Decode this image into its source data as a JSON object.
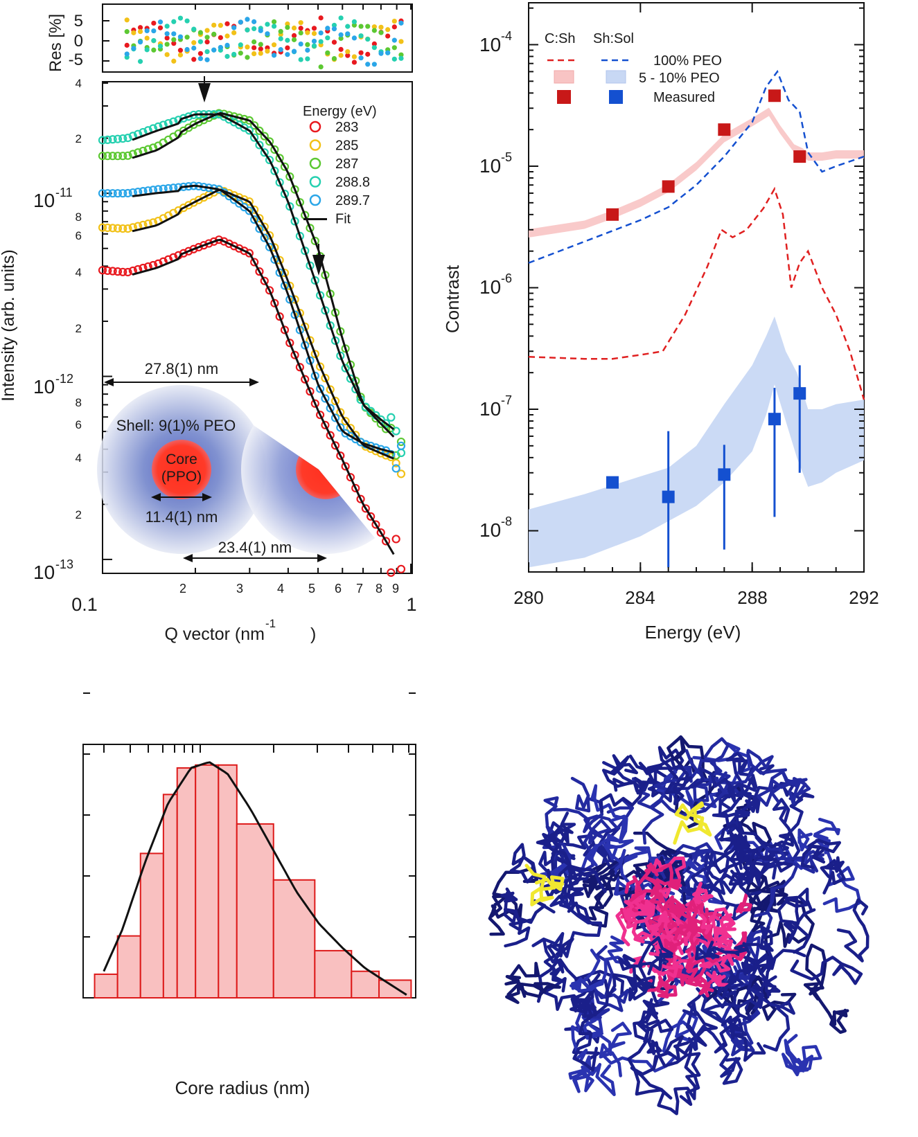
{
  "panels": {
    "saxs": {
      "residual_ylabel": "Res [%]",
      "residual_ticks": [
        "5",
        "0",
        "-5"
      ],
      "ylabel": "Intensity (arb. units)",
      "xlabel_main": "Q vector (nm",
      "xlabel_sup": "-1",
      "xlabel_end": ")",
      "x_ticks": {
        "major": [
          "0.1",
          "1"
        ],
        "minor": [
          "2",
          "3",
          "4",
          "5",
          "6",
          "7",
          "8",
          "9"
        ]
      },
      "y_ticks": {
        "decades": [
          {
            "base": "10",
            "exp": "-11"
          },
          {
            "base": "10",
            "exp": "-12"
          },
          {
            "base": "10",
            "exp": "-13"
          }
        ],
        "minor": [
          "4",
          "2",
          "8",
          "6",
          "4",
          "2",
          "8",
          "6",
          "4",
          "2"
        ]
      },
      "legend_title": "Energy (eV)",
      "legend_items": [
        {
          "label": "283",
          "color": "#e8191f"
        },
        {
          "label": "285",
          "color": "#f2c118"
        },
        {
          "label": "287",
          "color": "#5cc832"
        },
        {
          "label": "288.8",
          "color": "#25d0b0"
        },
        {
          "label": "289.7",
          "color": "#2aa6e8"
        },
        {
          "label": "Fit",
          "color": "#111111"
        }
      ],
      "annotations": {
        "outer_diameter": "27.8(1) nm",
        "shell": "Shell: 9(1)% PEO",
        "core_line1": "Core",
        "core_line2": "(PPO)",
        "core_diameter": "11.4(1) nm",
        "inner_diameter": "23.4(1) nm"
      }
    },
    "contrast": {
      "ylabel": "Contrast",
      "xlabel": "Energy (eV)",
      "x_ticks": [
        "280",
        "284",
        "288",
        "292"
      ],
      "y_ticks": [
        {
          "base": "10",
          "exp": "-4"
        },
        {
          "base": "10",
          "exp": "-5"
        },
        {
          "base": "10",
          "exp": "-6"
        },
        {
          "base": "10",
          "exp": "-7"
        },
        {
          "base": "10",
          "exp": "-8"
        }
      ],
      "legend_header_1": "C:Sh",
      "legend_header_2": "Sh:Sol",
      "legend_rows": [
        "100% PEO",
        "5 - 10% PEO",
        "Measured"
      ],
      "colors": {
        "red": "#e02020",
        "blue": "#1450d0",
        "pink_band": "#f8c4c4",
        "blue_band": "#c8d8f4"
      }
    },
    "histogram": {
      "xlabel": "Core radius (nm)",
      "bar_fill": "#f9c0c0",
      "bar_stroke": "#dd1a1a"
    }
  },
  "chart_data": [
    {
      "type": "scatter",
      "title": "",
      "xlabel": "Q vector (nm-1)",
      "ylabel": "Intensity (arb. units)",
      "xscale": "log",
      "yscale": "log",
      "xlim": [
        0.1,
        1.0
      ],
      "ylim": [
        9e-14,
        4e-11
      ],
      "legend": "top-right",
      "series": [
        {
          "name": "283",
          "color": "#e8191f",
          "x": [
            0.1,
            0.12,
            0.15,
            0.2,
            0.24,
            0.3,
            0.35,
            0.4,
            0.5,
            0.6,
            0.7,
            0.8,
            0.9
          ],
          "y": [
            3.8e-12,
            3.7e-12,
            4.1e-12,
            5e-12,
            5.6e-12,
            4.7e-12,
            2.9e-12,
            1.6e-12,
            6.5e-13,
            3.5e-13,
            2e-13,
            1.4e-13,
            1e-13
          ]
        },
        {
          "name": "285",
          "color": "#f2c118",
          "x": [
            0.1,
            0.12,
            0.15,
            0.2,
            0.24,
            0.3,
            0.35,
            0.4,
            0.5,
            0.6,
            0.7,
            0.8,
            0.9
          ],
          "y": [
            6.5e-12,
            6.4e-12,
            7e-12,
            9e-12,
            1.05e-11,
            9e-12,
            5.8e-12,
            3.3e-12,
            1.2e-12,
            6e-13,
            4.2e-13,
            3.8e-13,
            3.5e-13
          ]
        },
        {
          "name": "287",
          "color": "#5cc832",
          "x": [
            0.1,
            0.12,
            0.15,
            0.2,
            0.24,
            0.3,
            0.35,
            0.4,
            0.5,
            0.6,
            0.7,
            0.8,
            0.9
          ],
          "y": [
            1.6e-11,
            1.6e-11,
            1.8e-11,
            2.4e-11,
            2.75e-11,
            2.5e-11,
            1.9e-11,
            1.3e-11,
            5e-12,
            1.6e-12,
            7e-13,
            5.5e-13,
            4.5e-13
          ]
        },
        {
          "name": "288.8",
          "color": "#25d0b0",
          "x": [
            0.1,
            0.12,
            0.15,
            0.2,
            0.24,
            0.3,
            0.35,
            0.4,
            0.5,
            0.6,
            0.7,
            0.8,
            0.9
          ],
          "y": [
            1.95e-11,
            2e-11,
            2.3e-11,
            2.7e-11,
            2.7e-11,
            2.2e-11,
            1.5e-11,
            9e-12,
            3e-12,
            1.2e-12,
            7e-13,
            5.8e-13,
            5e-13
          ]
        },
        {
          "name": "289.7",
          "color": "#2aa6e8",
          "x": [
            0.1,
            0.12,
            0.15,
            0.2,
            0.24,
            0.3,
            0.35,
            0.4,
            0.5,
            0.6,
            0.7,
            0.8,
            0.9
          ],
          "y": [
            1e-11,
            1e-11,
            1.05e-11,
            1.1e-11,
            1.05e-11,
            8e-12,
            5e-12,
            2.8e-12,
            9e-13,
            5e-13,
            4.3e-13,
            4e-13,
            3.8e-13
          ]
        }
      ]
    },
    {
      "type": "line",
      "title": "",
      "xlabel": "Energy (eV)",
      "ylabel": "Contrast",
      "yscale": "log",
      "xlim": [
        280,
        292
      ],
      "ylim": [
        5e-09,
        0.0002
      ],
      "legend": "top-left",
      "series": [
        {
          "name": "C:Sh 100% PEO",
          "style": "dashed",
          "color": "#e02020",
          "x": [
            280,
            282,
            283,
            284,
            284.8,
            285.6,
            286.4,
            286.9,
            287.3,
            287.8,
            288.4,
            288.8,
            289.1,
            289.4,
            289.7,
            290,
            290.5,
            291,
            291.5,
            292
          ],
          "y": [
            2.7e-07,
            2.6e-07,
            2.6e-07,
            2.8e-07,
            3e-07,
            6e-07,
            1.5e-06,
            3e-06,
            2.6e-06,
            3e-06,
            4.5e-06,
            6.5e-06,
            4e-06,
            1e-06,
            1.6e-06,
            2e-06,
            1e-06,
            6e-07,
            3e-07,
            1.2e-07
          ]
        },
        {
          "name": "Sh:Sol 100% PEO",
          "style": "dashed",
          "color": "#1450d0",
          "x": [
            280,
            282,
            284,
            285,
            286,
            287,
            288,
            288.5,
            288.9,
            289.3,
            289.7,
            290,
            290.5,
            291,
            292
          ],
          "y": [
            1.6e-06,
            2.4e-06,
            3.6e-06,
            4.6e-06,
            7e-06,
            1.2e-05,
            2.3e-05,
            4.5e-05,
            6e-05,
            3.5e-05,
            2.8e-05,
            1.3e-05,
            9e-06,
            1e-05,
            1.2e-05
          ]
        },
        {
          "name": "C:Sh 5 - 10% PEO",
          "style": "band",
          "color": "#f8c4c4",
          "x": [
            280,
            282,
            283,
            284,
            285,
            286,
            287,
            288,
            288.6,
            289,
            289.5,
            289.8,
            290,
            290.5,
            291,
            292
          ],
          "y": [
            2.8e-06,
            3.3e-06,
            4e-06,
            5e-06,
            6.6e-06,
            1e-05,
            1.7e-05,
            2.3e-05,
            2.8e-05,
            2e-05,
            1.4e-05,
            1.3e-05,
            1.2e-05,
            1.2e-05,
            1.25e-05,
            1.25e-05
          ]
        },
        {
          "name": "Sh:Sol 5 - 10% PEO",
          "style": "band",
          "color": "#c8d8f4",
          "x": [
            280,
            282,
            284,
            285,
            286,
            287,
            288,
            288.5,
            288.8,
            289.2,
            289.6,
            290,
            290.5,
            291,
            292
          ],
          "y_low": [
            5e-09,
            6e-09,
            9e-09,
            1.2e-08,
            1.6e-08,
            2.5e-08,
            4.5e-08,
            9e-08,
            1.6e-07,
            8e-08,
            4e-08,
            2.3e-08,
            2.5e-08,
            3e-08,
            3.8e-08
          ],
          "y_high": [
            1.5e-08,
            2e-08,
            2.8e-08,
            3.3e-08,
            5e-08,
            1.1e-07,
            2.3e-07,
            4e-07,
            5.8e-07,
            3e-07,
            2e-07,
            1e-07,
            1e-07,
            1.1e-07,
            1.2e-07
          ]
        },
        {
          "name": "C:Sh Measured",
          "style": "markers",
          "color": "#c81818",
          "x": [
            283,
            285,
            287,
            288.8,
            289.7
          ],
          "y": [
            4e-06,
            6.8e-06,
            2e-05,
            3.8e-05,
            1.2e-05
          ]
        },
        {
          "name": "Sh:Sol Measured",
          "style": "markers",
          "color": "#1450d0",
          "x": [
            283,
            285,
            287,
            288.8,
            289.7
          ],
          "y": [
            2.5e-08,
            1.9e-08,
            2.9e-08,
            8.3e-08,
            1.35e-07
          ],
          "y_err_low": [
            2.5e-08,
            5e-09,
            7e-09,
            1.3e-08,
            3e-08
          ],
          "y_err_high": [
            2.5e-08,
            6.6e-08,
            5.1e-08,
            1.5e-07,
            2.3e-07
          ]
        }
      ]
    },
    {
      "type": "bar",
      "title": "",
      "xlabel": "Core radius (nm)",
      "ylabel": "",
      "bins": [
        {
          "left": 0,
          "right": 1,
          "value": 0.8
        },
        {
          "left": 1,
          "right": 2,
          "value": 2.1
        },
        {
          "left": 2,
          "right": 3,
          "value": 4.9
        },
        {
          "left": 3,
          "right": 3.6,
          "value": 6.9
        },
        {
          "left": 3.6,
          "right": 4.4,
          "value": 7.8
        },
        {
          "left": 4.4,
          "right": 5.4,
          "value": 7.9
        },
        {
          "left": 5.4,
          "right": 6.2,
          "value": 7.9
        },
        {
          "left": 6.2,
          "right": 7.8,
          "value": 5.9
        },
        {
          "left": 7.8,
          "right": 9.6,
          "value": 4.0
        },
        {
          "left": 9.6,
          "right": 11.2,
          "value": 1.6
        },
        {
          "left": 11.2,
          "right": 12.4,
          "value": 0.9
        },
        {
          "left": 12.4,
          "right": 13.8,
          "value": 0.6
        }
      ],
      "fit": {
        "x": [
          0.4,
          1.2,
          2.2,
          3.2,
          4.2,
          5.0,
          5.8,
          6.8,
          7.8,
          8.8,
          9.8,
          10.8,
          11.8,
          12.8,
          13.6
        ],
        "y": [
          0.9,
          2.3,
          4.6,
          6.6,
          7.8,
          8.0,
          7.6,
          6.4,
          5.0,
          3.6,
          2.5,
          1.7,
          1.0,
          0.5,
          0.1
        ]
      },
      "xlim": [
        -0.5,
        14
      ],
      "ylim": [
        0,
        8.6
      ]
    }
  ]
}
